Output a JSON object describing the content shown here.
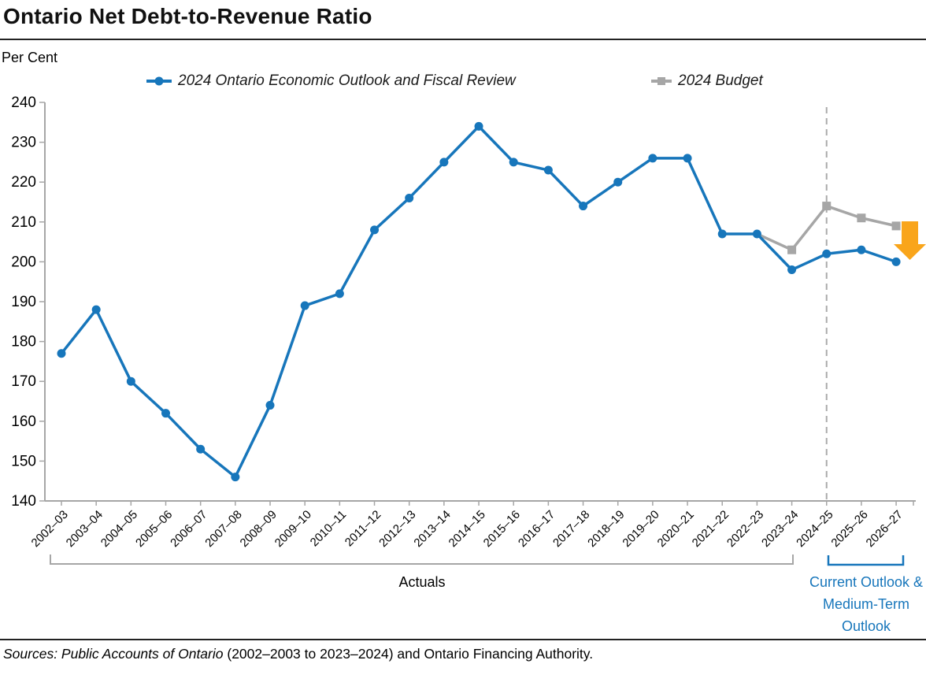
{
  "header": {
    "title": "Ontario Net Debt-to-Revenue Ratio"
  },
  "axis_unit_label": "Per Cent",
  "legend": [
    {
      "label": "2024 Ontario Economic Outlook and Fiscal Review",
      "marker": "circle"
    },
    {
      "label": "2024 Budget",
      "marker": "square"
    }
  ],
  "chart_data": {
    "type": "line",
    "title": "Ontario Net Debt-to-Revenue Ratio",
    "ylabel": "Per Cent",
    "ylim": [
      140,
      240
    ],
    "yticks": [
      140,
      150,
      160,
      170,
      180,
      190,
      200,
      210,
      220,
      230,
      240
    ],
    "grid": false,
    "legend_position": "top",
    "categories": [
      "2002–03",
      "2003–04",
      "2004–05",
      "2005–06",
      "2006–07",
      "2007–08",
      "2008–09",
      "2009–10",
      "2010–11",
      "2011–12",
      "2012–13",
      "2013–14",
      "2014–15",
      "2015–16",
      "2016–17",
      "2017–18",
      "2018–19",
      "2019–20",
      "2020–21",
      "2021–22",
      "2022–23",
      "2023–24",
      "2024–25",
      "2025–26",
      "2026–27"
    ],
    "series": [
      {
        "name": "2024 Ontario Economic Outlook and Fiscal Review",
        "color": "#1776BB",
        "marker": "circle",
        "values": [
          177,
          188,
          170,
          162,
          153,
          146,
          164,
          189,
          192,
          208,
          216,
          225,
          234,
          225,
          223,
          214,
          220,
          226,
          226,
          207,
          207,
          198,
          202,
          203,
          200
        ]
      },
      {
        "name": "2024 Budget",
        "color": "#A6A6A6",
        "marker": "square",
        "skip_first_marker": true,
        "values": [
          null,
          null,
          null,
          null,
          null,
          null,
          null,
          null,
          null,
          null,
          null,
          null,
          null,
          null,
          null,
          null,
          null,
          null,
          null,
          null,
          207,
          203,
          214,
          211,
          209
        ]
      }
    ],
    "divider_at_category": "2024–25",
    "divider_color": "#ABABAB",
    "axis_color": "#A6A6A6"
  },
  "annotations": {
    "actuals": "Actuals",
    "outlook_line1": "Current Outlook &",
    "outlook_line2": "Medium-Term",
    "outlook_line3": "Outlook",
    "arrow_color": "#F9A51B",
    "actuals_bracket_color": "#A6A6A6",
    "outlook_bracket_color": "#1776BB"
  },
  "footer": {
    "sources_italic": "Sources: Public Accounts of Ontario",
    "sources_rest": " (2002–2003 to 2023–2024) and Ontario Financing Authority."
  }
}
